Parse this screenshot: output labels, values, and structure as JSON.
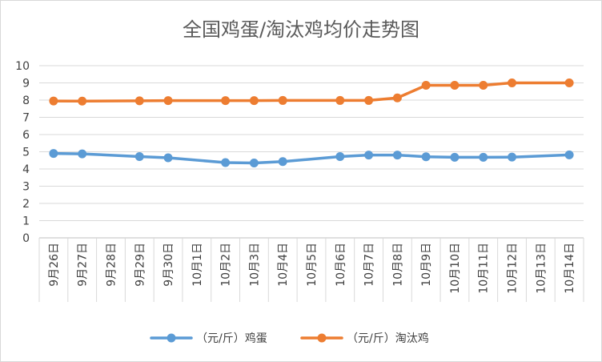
{
  "chart_data": {
    "type": "line",
    "title": "全国鸡蛋/淘汰鸡均价走势图",
    "xlabel": "",
    "ylabel": "",
    "categories": [
      "9月26日",
      "9月27日",
      "9月28日",
      "9月29日",
      "9月30日",
      "10月1日",
      "10月2日",
      "10月3日",
      "10月4日",
      "10月5日",
      "10月6日",
      "10月7日",
      "10月8日",
      "10月9日",
      "10月10日",
      "10月11日",
      "10月12日",
      "10月13日",
      "10月14日"
    ],
    "y_ticks": [
      "0",
      "1",
      "2",
      "3",
      "4",
      "5",
      "6",
      "7",
      "8",
      "9",
      "10"
    ],
    "ylim": [
      0,
      10
    ],
    "grid": true,
    "legend_position": "bottom",
    "series": [
      {
        "name": "（元/斤）鸡蛋",
        "color": "#5b9bd5",
        "values": [
          4.9,
          4.88,
          null,
          4.72,
          4.65,
          null,
          4.37,
          4.35,
          4.43,
          null,
          4.72,
          4.81,
          4.81,
          4.71,
          4.68,
          4.68,
          4.69,
          null,
          4.82
        ]
      },
      {
        "name": "（元/斤）淘汰鸡",
        "color": "#ed7d31",
        "values": [
          7.95,
          7.94,
          null,
          7.96,
          7.97,
          null,
          7.97,
          7.97,
          7.98,
          null,
          7.98,
          7.98,
          8.13,
          8.86,
          8.86,
          8.86,
          9.0,
          null,
          9.0
        ]
      }
    ]
  }
}
